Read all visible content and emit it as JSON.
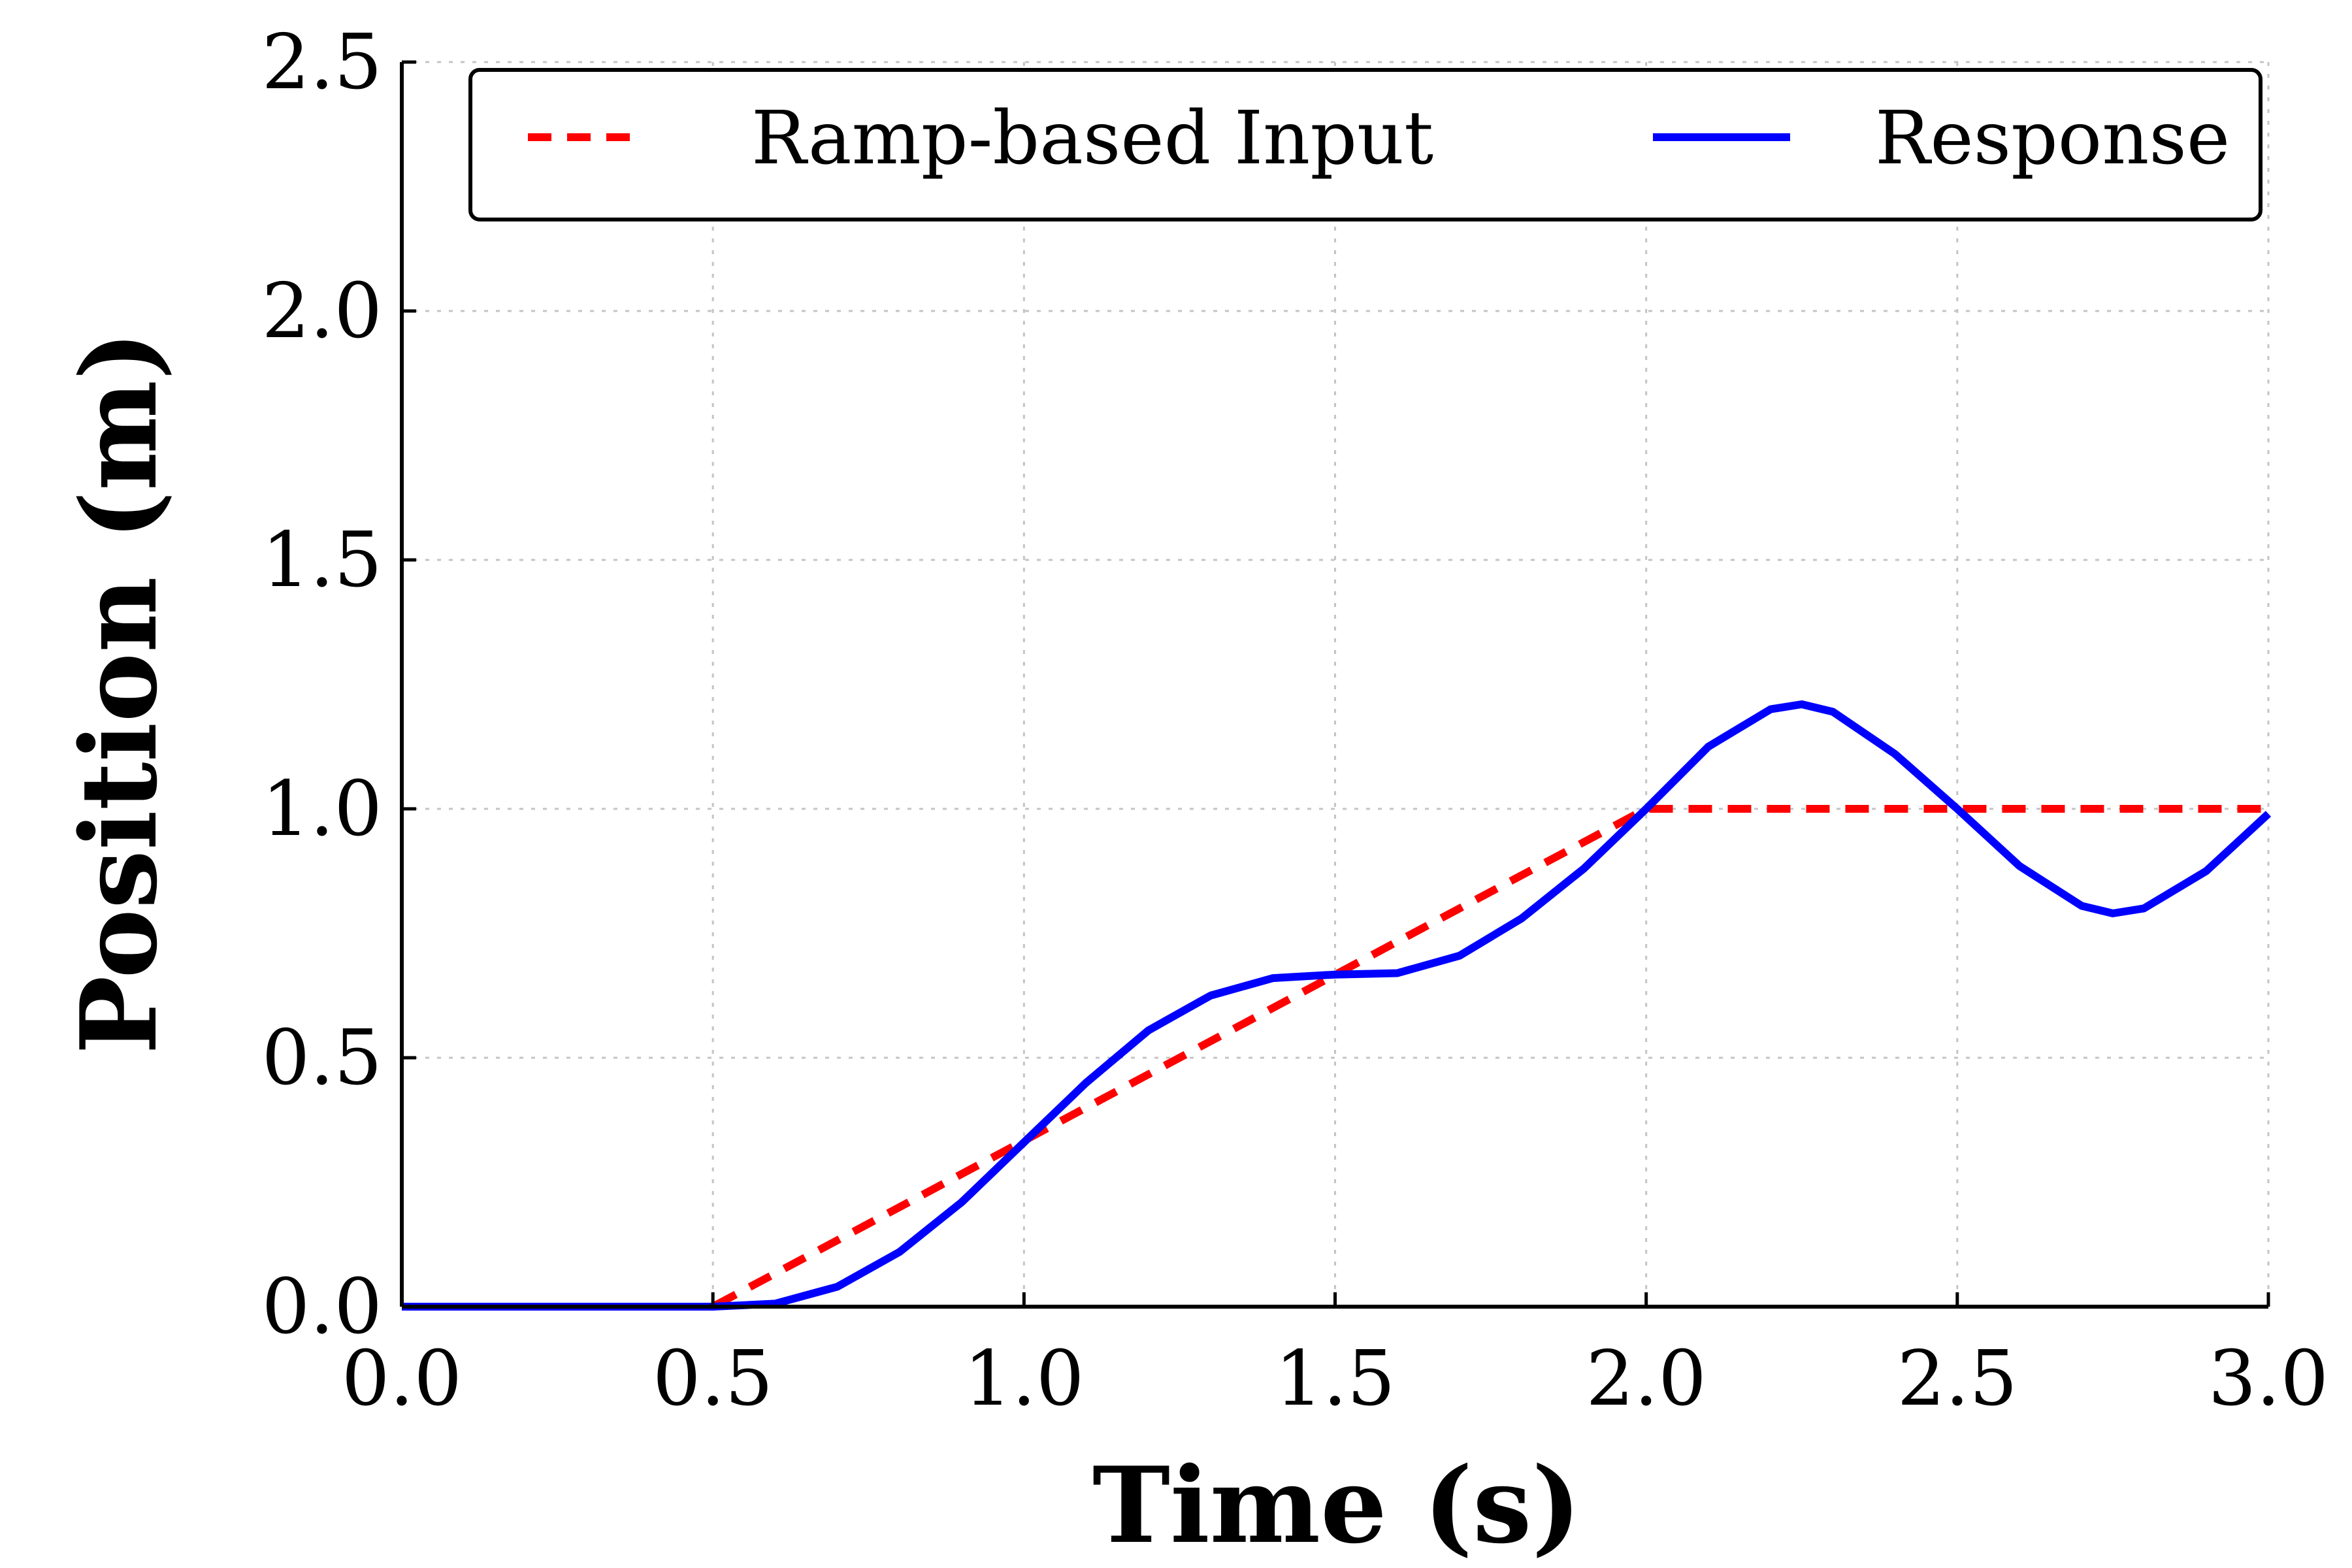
{
  "chart_data": {
    "type": "line",
    "xlabel": "Time (s)",
    "ylabel": "Position (m)",
    "xlim": [
      0.0,
      3.0
    ],
    "ylim": [
      0.0,
      2.5
    ],
    "xticks": [
      "0.0",
      "0.5",
      "1.0",
      "1.5",
      "2.0",
      "2.5",
      "3.0"
    ],
    "yticks": [
      "0.0",
      "0.5",
      "1.0",
      "1.5",
      "2.0",
      "2.5"
    ],
    "grid": true,
    "legend_position": "top",
    "legend_columns": 2,
    "series": [
      {
        "name": "Ramp-based Input",
        "style": "dashed",
        "color": "#ff0000",
        "x": [
          0.0,
          0.5,
          2.0,
          3.0
        ],
        "y": [
          0.0,
          0.0,
          1.0,
          1.0
        ]
      },
      {
        "name": "Response",
        "style": "solid",
        "color": "#0000ff",
        "x": [
          0.0,
          0.5,
          0.6,
          0.7,
          0.8,
          0.9,
          1.0,
          1.1,
          1.2,
          1.3,
          1.4,
          1.5,
          1.6,
          1.7,
          1.8,
          1.9,
          2.0,
          2.1,
          2.2,
          2.25,
          2.3,
          2.4,
          2.5,
          2.6,
          2.7,
          2.75,
          2.8,
          2.9,
          3.0
        ],
        "y": [
          0.0,
          0.0,
          0.006,
          0.04,
          0.11,
          0.21,
          0.33,
          0.45,
          0.555,
          0.625,
          0.66,
          0.667,
          0.67,
          0.705,
          0.78,
          0.88,
          1.0,
          1.125,
          1.2,
          1.21,
          1.195,
          1.11,
          1.0,
          0.885,
          0.805,
          0.79,
          0.8,
          0.875,
          0.99
        ]
      }
    ]
  }
}
